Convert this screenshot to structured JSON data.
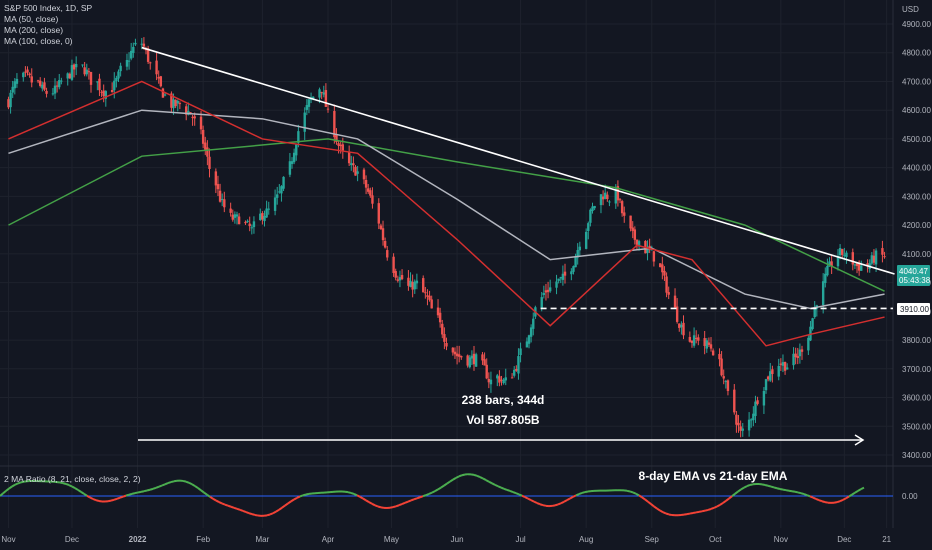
{
  "legend": {
    "title": "S&P 500 Index, 1D, SP",
    "ma1": "MA (50, close)",
    "ma2": "MA (200, close)",
    "ma3": "MA (100, close, 0)",
    "indicator": "2 MA Ratio (8, 21, close, close, 2, 2)"
  },
  "price_axis": {
    "currency": "USD",
    "ticks": [
      "4900.00",
      "4800.00",
      "4700.00",
      "4600.00",
      "4500.00",
      "4400.00",
      "4300.00",
      "4200.00",
      "4100.00",
      "4000.00",
      "3900.00",
      "3800.00",
      "3700.00",
      "3600.00",
      "3500.00",
      "3400.00"
    ],
    "last_price": "4040.47",
    "countdown": "05:43:38",
    "support_label": "3910.00"
  },
  "indicator_axis": {
    "zero_label": "0.00"
  },
  "time_axis": {
    "labels": [
      "Nov",
      "Dec",
      "2022",
      "Feb",
      "Mar",
      "Apr",
      "May",
      "Jun",
      "Jul",
      "Aug",
      "Sep",
      "Oct",
      "Nov",
      "Dec",
      "21"
    ]
  },
  "annotations": {
    "bars_line1": "238 bars, 344d",
    "bars_line2": "Vol 587.805B",
    "ema_text": "8-day EMA vs 21-day EMA"
  },
  "colors": {
    "background": "#131722",
    "up": "#26a69a",
    "down": "#ef5350",
    "ma50": "#d32f2f",
    "ma100": "#b2b5be",
    "ma200": "#43a047",
    "ratio_pos": "#4caf50",
    "ratio_neg": "#f44336",
    "zero_line": "#2962ff"
  },
  "chart_data": {
    "type": "candlestick",
    "instrument": "S&P 500 Index",
    "timeframe": "1D",
    "price_range": [
      3400,
      4900
    ],
    "support_level": 3910,
    "last_price": 4040.47,
    "trendline": {
      "from": [
        "2022-01-03",
        4818
      ],
      "to": [
        "2022-12-20",
        4030
      ]
    },
    "key_points": [
      {
        "date": "2021-11-01",
        "price": 4630
      },
      {
        "date": "2021-12-01",
        "price": 4700
      },
      {
        "date": "2022-01-03",
        "price": 4796
      },
      {
        "date": "2022-02-24",
        "price": 4170
      },
      {
        "date": "2022-03-29",
        "price": 4630
      },
      {
        "date": "2022-05-20",
        "price": 3850
      },
      {
        "date": "2022-06-16",
        "price": 3640
      },
      {
        "date": "2022-08-16",
        "price": 4320
      },
      {
        "date": "2022-10-13",
        "price": 3500
      },
      {
        "date": "2022-12-01",
        "price": 4080
      },
      {
        "date": "2022-12-20",
        "price": 4040
      }
    ],
    "series": [
      {
        "name": "MA (50, close)",
        "points": [
          [
            "2021-11-01",
            4500
          ],
          [
            "2022-01-03",
            4700
          ],
          [
            "2022-03-01",
            4500
          ],
          [
            "2022-04-15",
            4450
          ],
          [
            "2022-06-01",
            4150
          ],
          [
            "2022-07-15",
            3850
          ],
          [
            "2022-08-25",
            4130
          ],
          [
            "2022-09-20",
            4080
          ],
          [
            "2022-10-25",
            3780
          ],
          [
            "2022-11-15",
            3820
          ],
          [
            "2022-12-20",
            3880
          ]
        ]
      },
      {
        "name": "MA (100, close, 0)",
        "points": [
          [
            "2021-11-01",
            4450
          ],
          [
            "2022-01-03",
            4600
          ],
          [
            "2022-03-01",
            4570
          ],
          [
            "2022-04-15",
            4500
          ],
          [
            "2022-06-01",
            4290
          ],
          [
            "2022-07-15",
            4080
          ],
          [
            "2022-09-01",
            4120
          ],
          [
            "2022-10-15",
            3960
          ],
          [
            "2022-11-15",
            3910
          ],
          [
            "2022-12-20",
            3960
          ]
        ]
      },
      {
        "name": "MA (200, close)",
        "points": [
          [
            "2021-11-01",
            4200
          ],
          [
            "2022-01-03",
            4440
          ],
          [
            "2022-04-01",
            4500
          ],
          [
            "2022-06-01",
            4420
          ],
          [
            "2022-08-15",
            4330
          ],
          [
            "2022-10-15",
            4200
          ],
          [
            "2022-12-20",
            3970
          ]
        ]
      }
    ],
    "indicator": {
      "name": "2 MA Ratio (8, 21, close, close, 2, 2)",
      "zero_line": 0
    }
  }
}
